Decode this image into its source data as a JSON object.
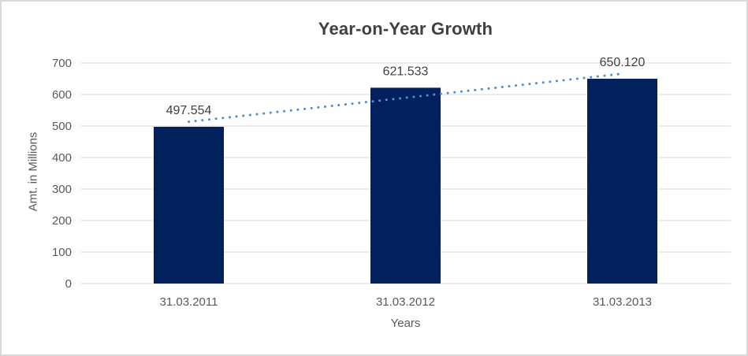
{
  "chart_data": {
    "type": "bar",
    "title": "Year-on-Year Growth",
    "xlabel": "Years",
    "ylabel": "Amt. in Millions",
    "categories": [
      "31.03.2011",
      "31.03.2012",
      "31.03.2013"
    ],
    "values": [
      497.554,
      621.533,
      650.12
    ],
    "data_labels": [
      "497.554",
      "621.533",
      "650.120"
    ],
    "ylim": [
      0,
      700
    ],
    "yticks": [
      0,
      100,
      200,
      300,
      400,
      500,
      600,
      700
    ],
    "grid": true,
    "legend": "none",
    "trendline": {
      "type": "linear",
      "style": "dotted"
    },
    "colors": {
      "bar": "#02215C",
      "trendline": "#4A90D2",
      "gridline": "#D9D9D9",
      "axis_line": "#D9D9D9",
      "title_text": "#404040",
      "axis_title_text": "#595959",
      "tick_label_text": "#595959",
      "data_label_text": "#404040",
      "frame_border": "#D9D9D9",
      "background": "#FFFFFF"
    }
  }
}
